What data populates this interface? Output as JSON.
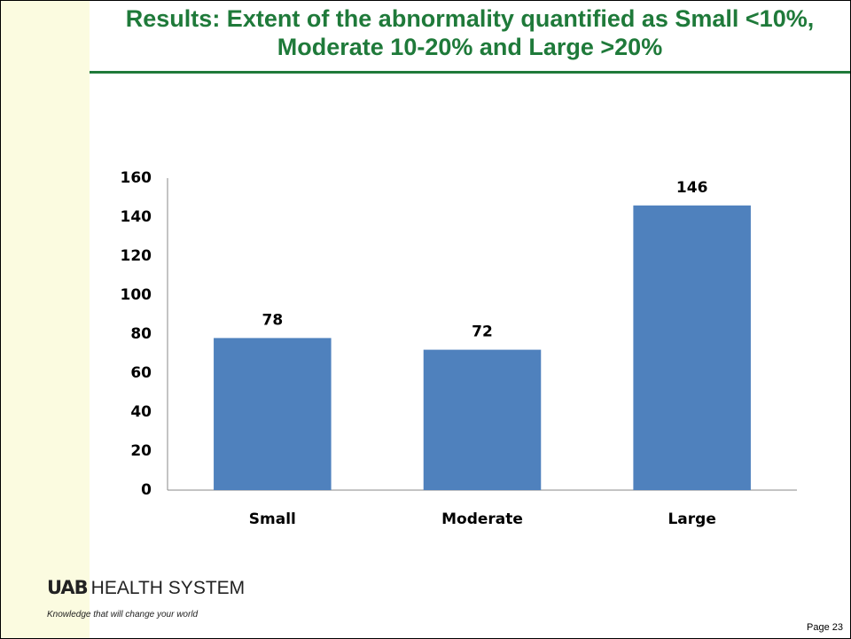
{
  "chart_data": {
    "type": "bar",
    "title": "Results: Extent of the abnormality quantified as Small <10%, Moderate 10-20% and Large >20%",
    "categories": [
      "Small",
      "Moderate",
      "Large"
    ],
    "values": [
      78,
      72,
      146
    ],
    "color": "#4f81bd",
    "ylim": [
      0,
      160
    ],
    "yticks": [
      0,
      20,
      40,
      60,
      80,
      100,
      120,
      140,
      160
    ],
    "grid": false
  },
  "footer": {
    "logo": "UAB",
    "brand": "HEALTH SYSTEM",
    "tagline": "Knowledge that will change your world",
    "page": "Page 23"
  }
}
